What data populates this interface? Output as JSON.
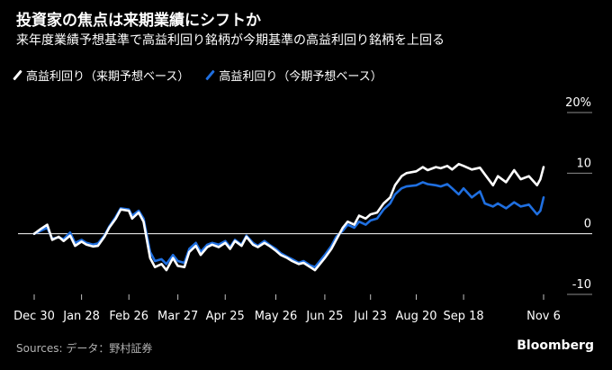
{
  "header": {
    "title": "投資家の焦点は来期業績にシフトか",
    "subtitle": "来年度業績予想基準で高益利回り銘柄が今期基準の高益利回り銘柄を上回る"
  },
  "footer": {
    "source": "Sources: データ：野村証券",
    "logo": "Bloomberg"
  },
  "colors": {
    "background": "#000000",
    "series_next_fy": "#ffffff",
    "series_current_fy": "#1f6fe0",
    "zero_line": "#ffffff",
    "tick_text": "#ffffff"
  },
  "chart_data": {
    "type": "line",
    "xlabel": "",
    "ylabel": "",
    "ylim": [
      -10,
      20
    ],
    "yticks": [
      20,
      10,
      0,
      -10
    ],
    "ytick_labels": [
      "20%",
      "10",
      "0",
      "-10"
    ],
    "xtick_labels": [
      "Dec 30",
      "Jan 28",
      "Feb 26",
      "Mar 27",
      "Apr 25",
      "May 26",
      "Jun 25",
      "Jul 23",
      "Aug 20",
      "Sep 18",
      "Nov 6"
    ],
    "xtick_dates": [
      "2019-12-30",
      "2020-01-28",
      "2020-02-26",
      "2020-03-27",
      "2020-04-25",
      "2020-05-26",
      "2020-06-25",
      "2020-07-23",
      "2020-08-20",
      "2020-09-18",
      "2020-11-06"
    ],
    "grid": false,
    "legend_position": "top-left",
    "series": [
      {
        "name": "高益利回り（来期予想ベース）",
        "color": "#ffffff",
        "x": [
          "2019-12-30",
          "2020-01-03",
          "2020-01-07",
          "2020-01-10",
          "2020-01-14",
          "2020-01-17",
          "2020-01-21",
          "2020-01-24",
          "2020-01-28",
          "2020-01-31",
          "2020-02-04",
          "2020-02-07",
          "2020-02-11",
          "2020-02-14",
          "2020-02-18",
          "2020-02-21",
          "2020-02-26",
          "2020-02-28",
          "2020-03-03",
          "2020-03-06",
          "2020-03-10",
          "2020-03-13",
          "2020-03-17",
          "2020-03-20",
          "2020-03-24",
          "2020-03-27",
          "2020-03-31",
          "2020-04-03",
          "2020-04-07",
          "2020-04-10",
          "2020-04-14",
          "2020-04-17",
          "2020-04-21",
          "2020-04-25",
          "2020-04-28",
          "2020-05-01",
          "2020-05-05",
          "2020-05-08",
          "2020-05-12",
          "2020-05-15",
          "2020-05-19",
          "2020-05-22",
          "2020-05-26",
          "2020-05-29",
          "2020-06-02",
          "2020-06-05",
          "2020-06-09",
          "2020-06-12",
          "2020-06-16",
          "2020-06-19",
          "2020-06-25",
          "2020-06-29",
          "2020-07-02",
          "2020-07-06",
          "2020-07-09",
          "2020-07-13",
          "2020-07-16",
          "2020-07-20",
          "2020-07-23",
          "2020-07-27",
          "2020-07-31",
          "2020-08-04",
          "2020-08-07",
          "2020-08-11",
          "2020-08-14",
          "2020-08-20",
          "2020-08-24",
          "2020-08-27",
          "2020-09-01",
          "2020-09-04",
          "2020-09-08",
          "2020-09-11",
          "2020-09-15",
          "2020-09-18",
          "2020-09-23",
          "2020-09-28",
          "2020-10-01",
          "2020-10-06",
          "2020-10-09",
          "2020-10-14",
          "2020-10-19",
          "2020-10-23",
          "2020-10-28",
          "2020-11-02",
          "2020-11-04",
          "2020-11-06"
        ],
        "values": [
          0.0,
          0.8,
          1.5,
          -1.0,
          -0.5,
          -1.2,
          -0.3,
          -2.0,
          -1.3,
          -1.8,
          -2.1,
          -2.0,
          -0.5,
          1.0,
          2.5,
          4.0,
          3.8,
          2.5,
          3.5,
          2.0,
          -4.0,
          -5.5,
          -5.0,
          -6.0,
          -4.0,
          -5.3,
          -5.5,
          -3.0,
          -2.0,
          -3.5,
          -2.2,
          -1.8,
          -2.2,
          -1.5,
          -2.5,
          -1.2,
          -2.0,
          -0.5,
          -1.8,
          -2.2,
          -1.5,
          -2.0,
          -2.8,
          -3.5,
          -4.0,
          -4.5,
          -5.0,
          -4.8,
          -5.5,
          -6.0,
          -4.0,
          -2.5,
          -1.0,
          1.0,
          2.0,
          1.5,
          3.0,
          2.5,
          3.2,
          3.5,
          5.0,
          6.0,
          8.0,
          9.5,
          10.0,
          10.3,
          11.0,
          10.5,
          11.0,
          10.8,
          11.2,
          10.6,
          11.5,
          11.2,
          10.6,
          10.9,
          9.8,
          8.0,
          9.5,
          8.5,
          10.5,
          9.0,
          9.5,
          8.0,
          9.0,
          11.0
        ]
      },
      {
        "name": "高益利回り（今期予想ベース）",
        "color": "#1f6fe0",
        "x": [
          "2019-12-30",
          "2020-01-03",
          "2020-01-07",
          "2020-01-10",
          "2020-01-14",
          "2020-01-17",
          "2020-01-21",
          "2020-01-24",
          "2020-01-28",
          "2020-01-31",
          "2020-02-04",
          "2020-02-07",
          "2020-02-11",
          "2020-02-14",
          "2020-02-18",
          "2020-02-21",
          "2020-02-26",
          "2020-02-28",
          "2020-03-03",
          "2020-03-06",
          "2020-03-10",
          "2020-03-13",
          "2020-03-17",
          "2020-03-20",
          "2020-03-24",
          "2020-03-27",
          "2020-03-31",
          "2020-04-03",
          "2020-04-07",
          "2020-04-10",
          "2020-04-14",
          "2020-04-17",
          "2020-04-21",
          "2020-04-25",
          "2020-04-28",
          "2020-05-01",
          "2020-05-05",
          "2020-05-08",
          "2020-05-12",
          "2020-05-15",
          "2020-05-19",
          "2020-05-22",
          "2020-05-26",
          "2020-05-29",
          "2020-06-02",
          "2020-06-05",
          "2020-06-09",
          "2020-06-12",
          "2020-06-16",
          "2020-06-19",
          "2020-06-25",
          "2020-06-29",
          "2020-07-02",
          "2020-07-06",
          "2020-07-09",
          "2020-07-13",
          "2020-07-16",
          "2020-07-20",
          "2020-07-23",
          "2020-07-27",
          "2020-07-31",
          "2020-08-04",
          "2020-08-07",
          "2020-08-11",
          "2020-08-14",
          "2020-08-20",
          "2020-08-24",
          "2020-08-27",
          "2020-09-01",
          "2020-09-04",
          "2020-09-08",
          "2020-09-11",
          "2020-09-15",
          "2020-09-18",
          "2020-09-23",
          "2020-09-28",
          "2020-10-01",
          "2020-10-06",
          "2020-10-09",
          "2020-10-14",
          "2020-10-19",
          "2020-10-23",
          "2020-10-28",
          "2020-11-02",
          "2020-11-04",
          "2020-11-06"
        ],
        "values": [
          0.0,
          0.5,
          1.0,
          -0.8,
          -0.6,
          -0.9,
          0.2,
          -1.5,
          -1.0,
          -1.5,
          -1.8,
          -1.6,
          -0.3,
          1.2,
          2.8,
          4.2,
          4.0,
          3.0,
          3.8,
          2.5,
          -3.0,
          -4.5,
          -4.2,
          -5.0,
          -3.5,
          -4.5,
          -4.8,
          -2.5,
          -1.5,
          -3.0,
          -1.8,
          -1.5,
          -1.8,
          -1.2,
          -2.2,
          -1.0,
          -1.8,
          -0.3,
          -1.5,
          -2.0,
          -1.2,
          -1.8,
          -2.5,
          -3.2,
          -3.8,
          -4.2,
          -4.8,
          -4.5,
          -5.2,
          -5.5,
          -3.5,
          -2.0,
          -0.5,
          0.5,
          1.5,
          1.0,
          2.0,
          1.5,
          2.2,
          2.5,
          4.0,
          5.0,
          6.5,
          7.5,
          7.8,
          8.0,
          8.5,
          8.2,
          8.0,
          7.8,
          8.2,
          7.5,
          6.5,
          7.5,
          6.0,
          7.0,
          5.0,
          4.5,
          5.0,
          4.2,
          5.2,
          4.5,
          4.8,
          3.2,
          3.8,
          6.0
        ]
      }
    ]
  }
}
